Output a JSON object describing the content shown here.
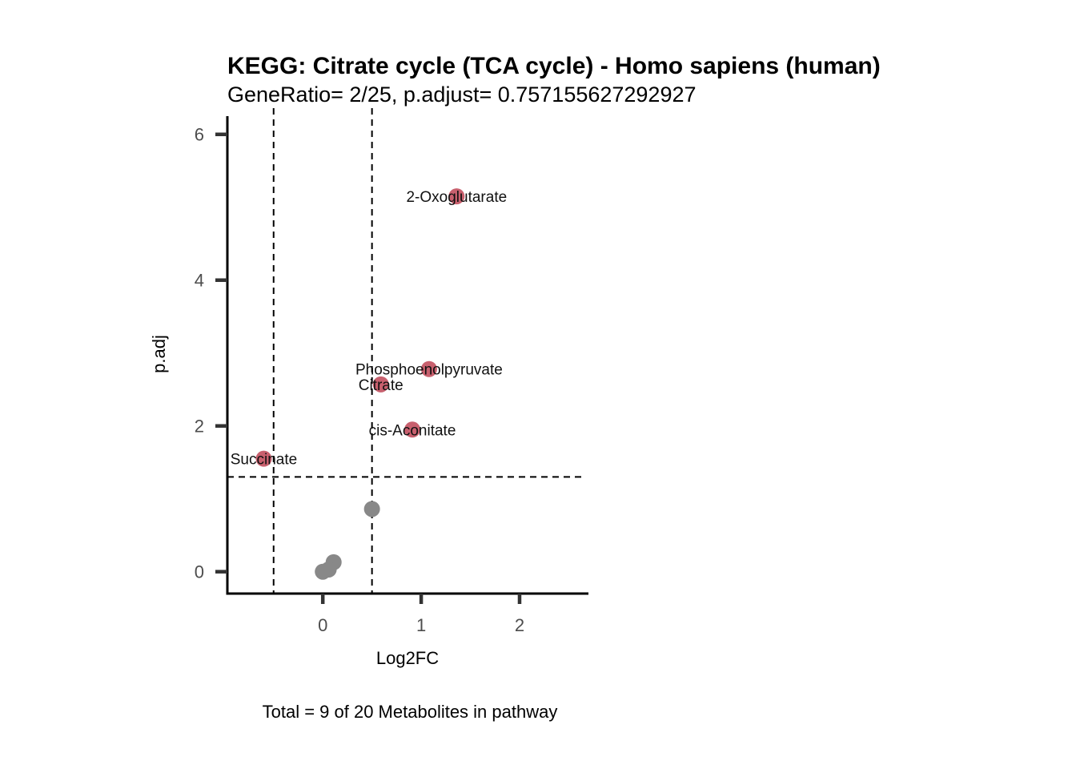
{
  "chart_data": {
    "type": "scatter",
    "title": "KEGG: Citrate cycle (TCA cycle) - Homo sapiens (human)",
    "subtitle": "GeneRatio= 2/25, p.adjust= 0.757155627292927",
    "xlabel": "Log2FC",
    "ylabel": "p.adj",
    "caption": "Total = 9 of 20 Metabolites in pathway",
    "xlim": [
      -0.97,
      2.7
    ],
    "ylim": [
      -0.3,
      6.25
    ],
    "x_ticks": [
      0,
      1,
      2
    ],
    "y_ticks": [
      0,
      2,
      4,
      6
    ],
    "grid": false,
    "legend": "none",
    "thresholds": {
      "x": [
        -0.5,
        0.5
      ],
      "y": [
        1.3
      ]
    },
    "colors": {
      "significant": "#c8606e",
      "not_significant": "#888888",
      "axis": "#000000",
      "tick": "#333333"
    },
    "points": [
      {
        "x": 1.36,
        "y": 5.15,
        "label": "2-Oxoglutarate",
        "significant": true
      },
      {
        "x": 1.08,
        "y": 2.78,
        "label": "Phosphoenolpyruvate",
        "significant": true
      },
      {
        "x": 0.59,
        "y": 2.57,
        "label": "Citrate",
        "significant": true
      },
      {
        "x": 0.91,
        "y": 1.95,
        "label": "cis-Aconitate",
        "significant": true
      },
      {
        "x": -0.6,
        "y": 1.55,
        "label": "Succinate",
        "significant": true
      },
      {
        "x": 0.5,
        "y": 0.86,
        "label": "",
        "significant": false
      },
      {
        "x": 0.11,
        "y": 0.13,
        "label": "",
        "significant": false
      },
      {
        "x": 0.06,
        "y": 0.03,
        "label": "",
        "significant": false
      },
      {
        "x": 0.0,
        "y": 0.0,
        "label": "",
        "significant": false
      }
    ]
  }
}
